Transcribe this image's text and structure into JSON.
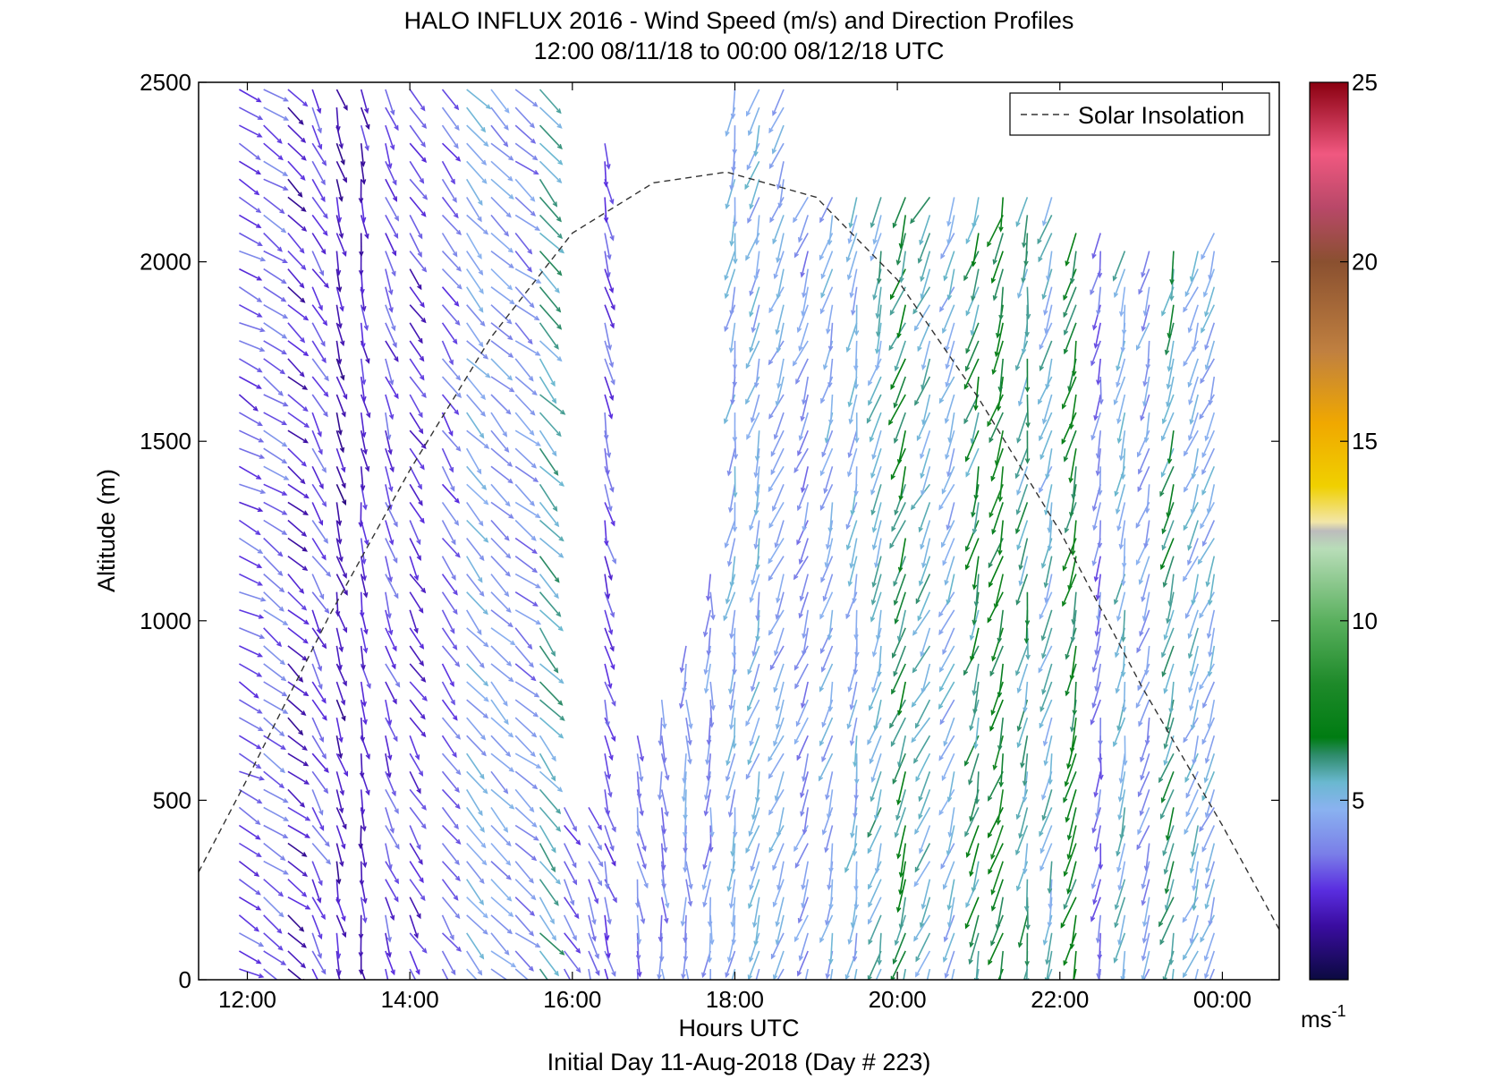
{
  "chart_data": {
    "type": "quiver",
    "title": "HALO INFLUX 2016 - Wind Speed (m/s) and Direction Profiles",
    "subtitle": "12:00 08/11/18 to 00:00 08/12/18  UTC",
    "xlabel": "Hours UTC",
    "ylabel": "Altitude (m)",
    "footer": "Initial Day 11-Aug-2018 (Day # 223)",
    "xlim": [
      11.4,
      24.7
    ],
    "ylim": [
      0,
      2500
    ],
    "x_ticks": [
      {
        "value": 12,
        "label": "12:00"
      },
      {
        "value": 14,
        "label": "14:00"
      },
      {
        "value": 16,
        "label": "16:00"
      },
      {
        "value": 18,
        "label": "18:00"
      },
      {
        "value": 20,
        "label": "20:00"
      },
      {
        "value": 22,
        "label": "22:00"
      },
      {
        "value": 24,
        "label": "00:00"
      }
    ],
    "y_ticks": [
      {
        "value": 0,
        "label": "0"
      },
      {
        "value": 500,
        "label": "500"
      },
      {
        "value": 1000,
        "label": "1000"
      },
      {
        "value": 1500,
        "label": "1500"
      },
      {
        "value": 2000,
        "label": "2000"
      },
      {
        "value": 2500,
        "label": "2500"
      }
    ],
    "legend": {
      "label": "Solar Insolation",
      "placement": "top-right"
    },
    "colorbar": {
      "unit_label": "ms",
      "unit_exponent": "-1",
      "range": [
        0,
        25
      ],
      "ticks": [
        {
          "value": 5,
          "label": "5"
        },
        {
          "value": 10,
          "label": "10"
        },
        {
          "value": 15,
          "label": "15"
        },
        {
          "value": 20,
          "label": "20"
        },
        {
          "value": 25,
          "label": "25"
        }
      ]
    },
    "solar_insolation_curve": {
      "style": "dashed",
      "x": [
        11.4,
        12.0,
        13.0,
        14.0,
        15.0,
        16.0,
        17.0,
        17.9,
        19.0,
        20.0,
        21.0,
        22.0,
        23.0,
        24.0,
        24.7
      ],
      "y": [
        300,
        560,
        1010,
        1420,
        1790,
        2080,
        2220,
        2250,
        2180,
        1950,
        1620,
        1250,
        820,
        430,
        140
      ]
    },
    "wind_profiles": {
      "times": [
        11.9,
        12.2,
        12.5,
        12.8,
        13.1,
        13.4,
        13.7,
        14.0,
        14.4,
        14.7,
        15.0,
        15.3,
        15.6,
        15.9,
        16.2,
        16.4,
        16.8,
        17.1,
        17.4,
        17.7,
        18.0,
        18.3,
        18.6,
        18.9,
        19.2,
        19.5,
        19.8,
        20.1,
        20.4,
        20.7,
        21.0,
        21.3,
        21.6,
        21.9,
        22.2,
        22.5,
        22.8,
        23.1,
        23.4,
        23.7,
        23.9
      ],
      "top_altitude_m": [
        2500,
        2500,
        2500,
        2500,
        2500,
        2500,
        2500,
        2500,
        2500,
        2500,
        2500,
        2500,
        2500,
        500,
        500,
        2350,
        720,
        800,
        950,
        1150,
        2500,
        2500,
        2500,
        2200,
        2200,
        2200,
        2200,
        2200,
        2200,
        2200,
        2200,
        2200,
        2200,
        2200,
        2100,
        2080,
        2060,
        2050,
        2040,
        2030,
        2080
      ],
      "bottom_altitude_m": 30,
      "mean_speed_ms": [
        3.0,
        3.4,
        2.0,
        3.0,
        1.8,
        2.2,
        2.8,
        2.4,
        3.2,
        4.6,
        4.2,
        3.8,
        5.5,
        3.2,
        3.6,
        3.0,
        3.6,
        3.8,
        4.2,
        4.0,
        4.6,
        4.8,
        4.4,
        4.0,
        4.6,
        4.8,
        5.5,
        6.5,
        5.5,
        4.8,
        6.2,
        7.0,
        5.8,
        5.2,
        6.8,
        3.6,
        5.2,
        4.2,
        6.0,
        5.0,
        4.8
      ],
      "mean_direction_deg": [
        120,
        125,
        130,
        150,
        165,
        170,
        160,
        150,
        145,
        140,
        135,
        130,
        140,
        150,
        160,
        165,
        170,
        175,
        180,
        185,
        190,
        195,
        200,
        200,
        195,
        190,
        195,
        200,
        205,
        200,
        195,
        195,
        190,
        195,
        195,
        190,
        190,
        195,
        195,
        200,
        200
      ],
      "vertical_spacing_m": 50
    }
  }
}
